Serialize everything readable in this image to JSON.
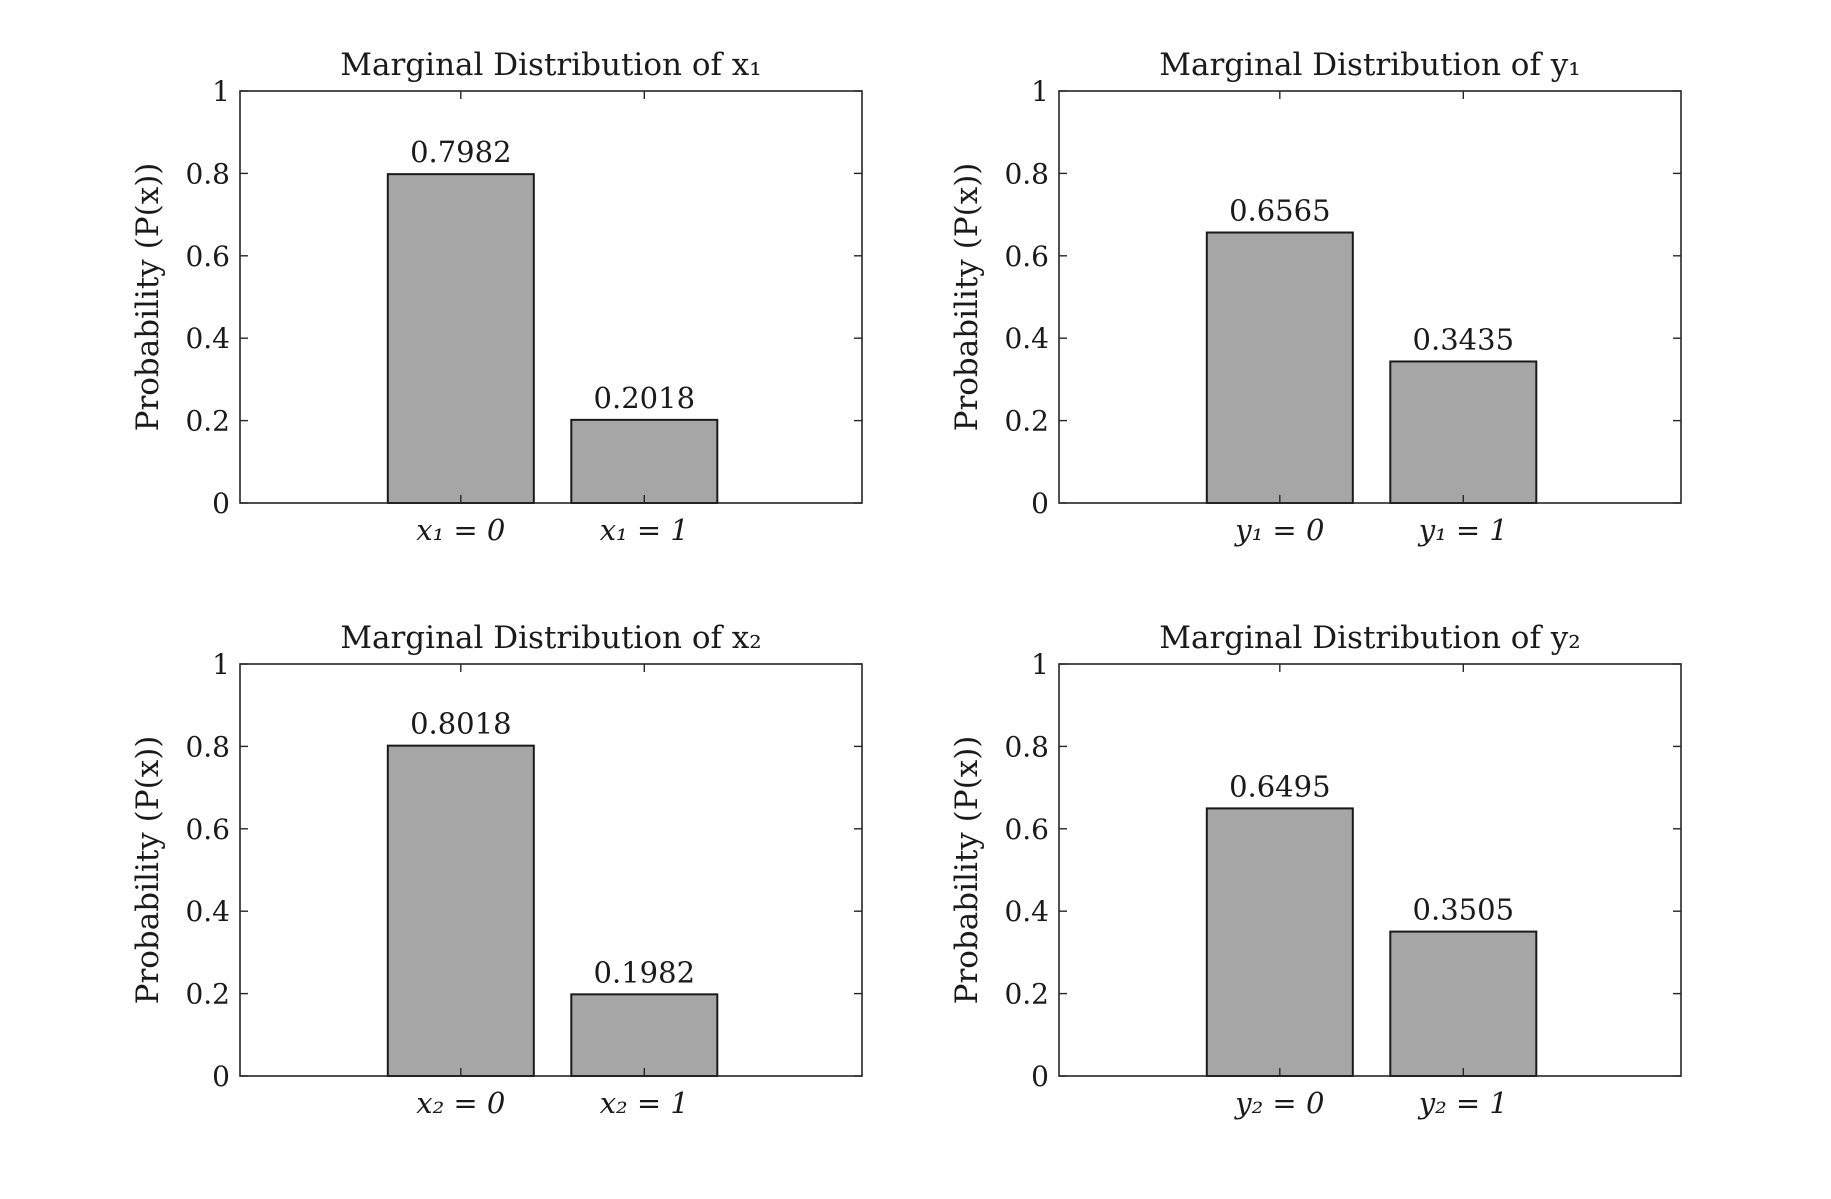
{
  "chart_data": [
    {
      "type": "bar",
      "title": "Marginal Distribution of x₁",
      "ylabel": "Probability (P(x))",
      "xlabel": "",
      "categories": [
        "x₁ = 0",
        "x₁ = 1"
      ],
      "values": [
        0.7982,
        0.2018
      ],
      "data_labels": [
        "0.7982",
        "0.2018"
      ],
      "ylim": [
        0,
        1
      ],
      "yticks": [
        "0",
        "0.2",
        "0.4",
        "0.6",
        "0.8",
        "1"
      ],
      "bar_color": "#a6a6a6",
      "grid": false
    },
    {
      "type": "bar",
      "title": "Marginal Distribution of y₁",
      "ylabel": "Probability (P(x))",
      "xlabel": "",
      "categories": [
        "y₁ = 0",
        "y₁ = 1"
      ],
      "values": [
        0.6565,
        0.3435
      ],
      "data_labels": [
        "0.6565",
        "0.3435"
      ],
      "ylim": [
        0,
        1
      ],
      "yticks": [
        "0",
        "0.2",
        "0.4",
        "0.6",
        "0.8",
        "1"
      ],
      "bar_color": "#a6a6a6",
      "grid": false
    },
    {
      "type": "bar",
      "title": "Marginal Distribution of x₂",
      "ylabel": "Probability (P(x))",
      "xlabel": "",
      "categories": [
        "x₂ = 0",
        "x₂ = 1"
      ],
      "values": [
        0.8018,
        0.1982
      ],
      "data_labels": [
        "0.8018",
        "0.1982"
      ],
      "ylim": [
        0,
        1
      ],
      "yticks": [
        "0",
        "0.2",
        "0.4",
        "0.6",
        "0.8",
        "1"
      ],
      "bar_color": "#a6a6a6",
      "grid": false
    },
    {
      "type": "bar",
      "title": "Marginal Distribution of y₂",
      "ylabel": "Probability (P(x))",
      "xlabel": "",
      "categories": [
        "y₂ = 0",
        "y₂ = 1"
      ],
      "values": [
        0.6495,
        0.3505
      ],
      "data_labels": [
        "0.6495",
        "0.3505"
      ],
      "ylim": [
        0,
        1
      ],
      "yticks": [
        "0",
        "0.2",
        "0.4",
        "0.6",
        "0.8",
        "1"
      ],
      "bar_color": "#a6a6a6",
      "grid": false
    }
  ]
}
